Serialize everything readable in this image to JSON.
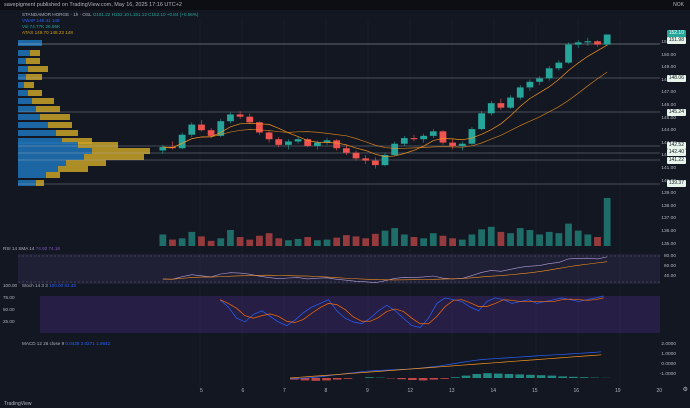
{
  "topbar": {
    "publisher": "savepigment published on TradingView.com, May 16, 2025 17:16 UTC+2",
    "currency": "NOK"
  },
  "legend": {
    "line1_symbol": "STANDAMOR HORGE · 1h · OSL",
    "line1_ohlc": "O151.22 H152.10 L151.12 C152.10 +0.84 (+0.56%)",
    "line2": "VWAP 148.41 148",
    "line3": "Vol 74.77K 26.95K",
    "line4": "ATAS 149.70 148.23 148"
  },
  "price_axis": {
    "labels": [
      "151.00",
      "150.00",
      "149.00",
      "148.00",
      "147.00",
      "146.00",
      "145.00",
      "144.00",
      "143.00",
      "142.00",
      "141.00",
      "140.00",
      "139.00",
      "138.00",
      "137.00",
      "136.00",
      "135.00"
    ],
    "tag_current": "152.10",
    "tag_current2": "151.98",
    "tag_148": "148.06",
    "tag_145": "145.24",
    "tag_142": "142.52",
    "tag_142b": "142.40",
    "tag_141": "141.22",
    "tag_139": "139.37"
  },
  "rsi": {
    "title": "RSI 14 SMA 14",
    "values": "74.92 74.18",
    "axis": [
      "80.00",
      "60.00",
      "40.00"
    ]
  },
  "stoch": {
    "title": "Stoch 14 3 3",
    "values": "100.00 92.49",
    "axis_left": [
      "100.00",
      "75.00",
      "50.00",
      "25.00"
    ]
  },
  "macd": {
    "title": "MACD 12 26 close 9",
    "values": "0.0428 2.0271 1.9842",
    "axis": [
      "2.0000",
      "1.0000",
      "0.0000",
      "-1.0000"
    ]
  },
  "x_axis": {
    "labels": [
      "5",
      "6",
      "7",
      "8",
      "9",
      "12",
      "13",
      "14",
      "15",
      "16",
      "19",
      "20"
    ]
  },
  "footer": {
    "brand": "TradingView"
  },
  "colors": {
    "bg": "#131722",
    "up": "#26a69a",
    "down": "#ef5350",
    "vwap": "#2962ff",
    "ma": "#f7931a",
    "rsi_band": "#7e57c2",
    "stoch_k": "#2962ff",
    "stoch_d": "#ff6d00"
  },
  "chart_data": {
    "type": "candlestick",
    "title": "",
    "candles": [
      [
        141.8,
        142.3,
        141.5,
        142.1
      ],
      [
        142.1,
        142.6,
        141.9,
        142.0
      ],
      [
        142.0,
        143.4,
        141.9,
        143.2
      ],
      [
        143.2,
        144.3,
        143.0,
        144.1
      ],
      [
        144.1,
        144.5,
        143.5,
        143.6
      ],
      [
        143.6,
        143.8,
        142.9,
        143.1
      ],
      [
        143.1,
        144.6,
        143.0,
        144.4
      ],
      [
        144.4,
        145.2,
        144.2,
        145.0
      ],
      [
        145.0,
        145.3,
        144.6,
        144.8
      ],
      [
        144.8,
        145.1,
        144.2,
        144.3
      ],
      [
        144.3,
        144.4,
        143.2,
        143.4
      ],
      [
        143.4,
        143.6,
        142.5,
        142.8
      ],
      [
        142.8,
        143.0,
        142.1,
        142.3
      ],
      [
        142.3,
        142.8,
        141.9,
        142.6
      ],
      [
        142.6,
        143.0,
        142.4,
        142.8
      ],
      [
        142.8,
        142.9,
        142.1,
        142.2
      ],
      [
        142.2,
        142.7,
        141.9,
        142.5
      ],
      [
        142.5,
        142.9,
        142.3,
        142.7
      ],
      [
        142.7,
        142.8,
        141.8,
        142.0
      ],
      [
        142.0,
        142.3,
        141.4,
        141.6
      ],
      [
        141.6,
        141.8,
        140.9,
        141.1
      ],
      [
        141.1,
        141.4,
        140.6,
        140.9
      ],
      [
        140.9,
        141.2,
        140.2,
        140.5
      ],
      [
        140.5,
        141.6,
        140.4,
        141.4
      ],
      [
        141.4,
        142.6,
        141.3,
        142.4
      ],
      [
        142.4,
        143.1,
        142.2,
        142.9
      ],
      [
        142.9,
        143.2,
        142.6,
        142.8
      ],
      [
        142.8,
        143.3,
        142.5,
        143.1
      ],
      [
        143.1,
        143.7,
        142.9,
        143.5
      ],
      [
        143.5,
        143.6,
        142.3,
        142.5
      ],
      [
        142.5,
        142.8,
        141.9,
        142.2
      ],
      [
        142.2,
        142.6,
        141.8,
        142.4
      ],
      [
        142.4,
        143.9,
        142.3,
        143.7
      ],
      [
        143.7,
        145.3,
        143.6,
        145.1
      ],
      [
        145.1,
        146.2,
        144.9,
        146.0
      ],
      [
        146.0,
        146.4,
        145.4,
        145.6
      ],
      [
        145.6,
        146.7,
        145.5,
        146.5
      ],
      [
        146.5,
        147.6,
        146.3,
        147.4
      ],
      [
        147.4,
        148.1,
        147.1,
        147.9
      ],
      [
        147.9,
        148.4,
        147.6,
        148.2
      ],
      [
        148.2,
        149.3,
        148.0,
        149.1
      ],
      [
        149.1,
        149.8,
        148.9,
        149.6
      ],
      [
        149.6,
        151.4,
        149.5,
        151.2
      ],
      [
        151.2,
        151.6,
        150.9,
        151.4
      ],
      [
        151.4,
        151.8,
        151.1,
        151.5
      ],
      [
        151.5,
        151.6,
        151.0,
        151.2
      ],
      [
        151.2,
        152.1,
        151.1,
        152.1
      ]
    ],
    "volume": [
      18,
      10,
      12,
      22,
      15,
      8,
      12,
      25,
      14,
      10,
      16,
      20,
      12,
      9,
      11,
      14,
      9,
      10,
      13,
      17,
      15,
      12,
      19,
      24,
      28,
      18,
      14,
      12,
      20,
      16,
      12,
      10,
      18,
      26,
      30,
      22,
      20,
      28,
      25,
      18,
      22,
      20,
      35,
      24,
      18,
      14,
      75
    ],
    "price_range": [
      139,
      152.5
    ]
  }
}
